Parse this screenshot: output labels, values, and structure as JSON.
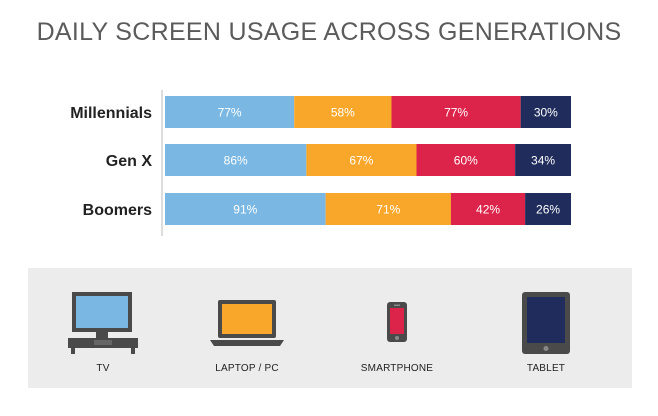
{
  "chart_data": {
    "type": "bar",
    "stacked": true,
    "orientation": "horizontal",
    "title": "DAILY SCREEN USAGE ACROSS GENERATIONS",
    "categories": [
      "Millennials",
      "Gen X",
      "Boomers"
    ],
    "series": [
      {
        "name": "TV",
        "color": "#7ab8e3",
        "values": [
          77,
          86,
          91
        ],
        "labels": [
          "77%",
          "86%",
          "91%"
        ]
      },
      {
        "name": "LAPTOP / PC",
        "color": "#f9a72b",
        "values": [
          58,
          67,
          71
        ],
        "labels": [
          "58%",
          "67%",
          "71%"
        ]
      },
      {
        "name": "SMARTPHONE",
        "color": "#dc2349",
        "values": [
          77,
          60,
          42
        ],
        "labels": [
          "77%",
          "60%",
          "42%"
        ]
      },
      {
        "name": "TABLET",
        "color": "#1f2c5c",
        "values": [
          30,
          34,
          26
        ],
        "labels": [
          "30%",
          "34%",
          "26%"
        ]
      }
    ],
    "legend_position": "bottom",
    "grid": false
  },
  "legend": {
    "items": [
      {
        "label": "TV",
        "icon": "tv-icon"
      },
      {
        "label": "LAPTOP / PC",
        "icon": "laptop-icon"
      },
      {
        "label": "SMARTPHONE",
        "icon": "smartphone-icon"
      },
      {
        "label": "TABLET",
        "icon": "tablet-icon"
      }
    ]
  }
}
